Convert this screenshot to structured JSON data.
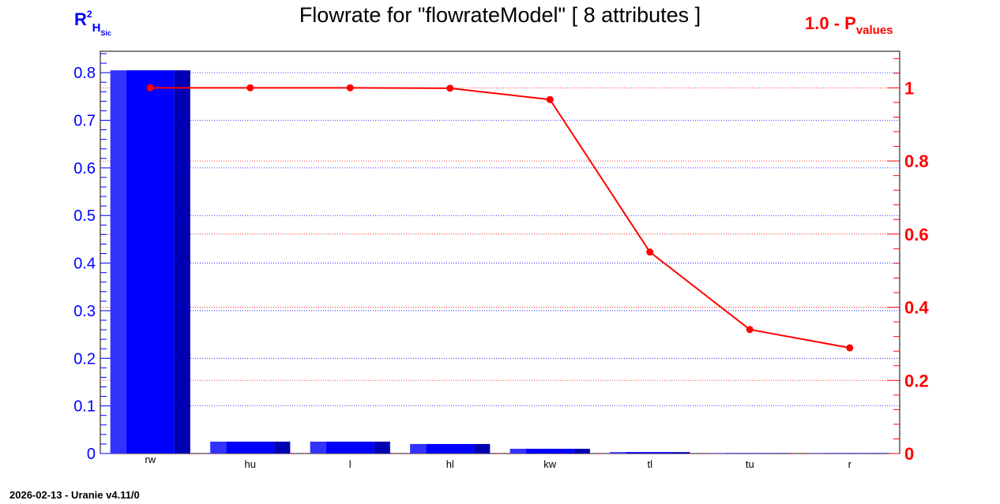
{
  "chart_data": {
    "type": "bar",
    "title": "Flowrate for \"flowrateModel\"  [ 8 attributes ]",
    "categories": [
      "rw",
      "hu",
      "l",
      "hl",
      "kw",
      "tl",
      "tu",
      "r"
    ],
    "series": [
      {
        "name": "R2 HSic",
        "type": "bar",
        "axis": "left",
        "color": "#0000ff",
        "values": [
          0.805,
          0.025,
          0.025,
          0.02,
          0.01,
          0.003,
          0.001,
          0.001
        ]
      },
      {
        "name": "1.0 - Pvalues",
        "type": "line",
        "axis": "right",
        "color": "#ff0000",
        "values": [
          1.0,
          1.0,
          1.0,
          0.999,
          0.968,
          0.551,
          0.339,
          0.289
        ]
      }
    ],
    "left_axis": {
      "label_main": "R",
      "label_sup": "2",
      "label_sub": "H",
      "label_subsub": "Sic",
      "ylim": [
        0,
        0.845
      ],
      "ticks": [
        "0",
        "0.1",
        "0.2",
        "0.3",
        "0.4",
        "0.5",
        "0.6",
        "0.7",
        "0.8"
      ],
      "color": "#0000ff"
    },
    "right_axis": {
      "label_main": "1.0 - P",
      "label_sub": "values",
      "ylim": [
        0,
        1.1
      ],
      "ticks": [
        "0",
        "0.2",
        "0.4",
        "0.6",
        "0.8",
        "1"
      ],
      "color": "#ff0000"
    },
    "grid": true
  },
  "footer": "2026-02-13 - Uranie v4.11/0"
}
